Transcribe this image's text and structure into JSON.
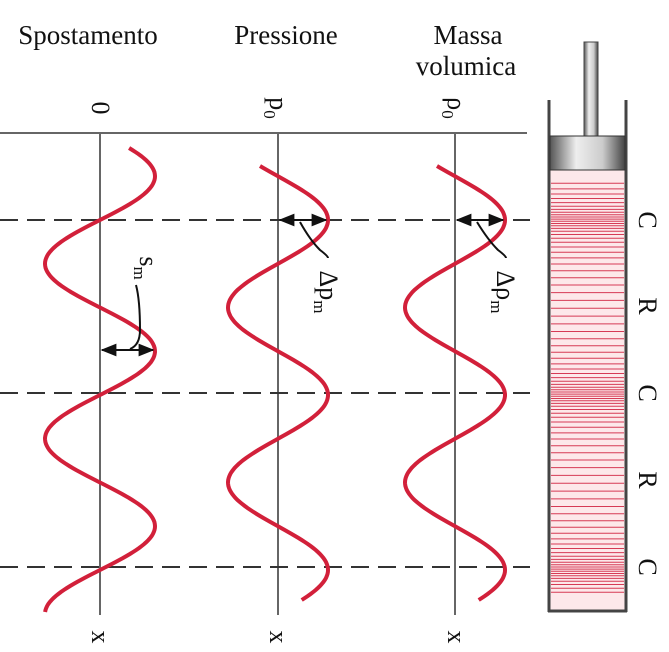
{
  "columns": [
    {
      "title_lines": [
        "Spostamento"
      ],
      "origin": {
        "symbol": "0"
      },
      "axis_label": "x",
      "amplitude": {
        "symbol": "s",
        "sub": "m"
      }
    },
    {
      "title_lines": [
        "Pressione"
      ],
      "origin": {
        "symbol": "p",
        "sub": "0"
      },
      "axis_label": "x",
      "amplitude": {
        "symbol": "Δp",
        "sub": "m"
      }
    },
    {
      "title_lines": [
        "Massa",
        "volumica"
      ],
      "origin": {
        "symbol": "ρ",
        "sub": "0"
      },
      "axis_label": "x",
      "amplitude": {
        "symbol": "Δρ",
        "sub": "m"
      }
    }
  ],
  "tube_labels": [
    "C",
    "R",
    "C",
    "R",
    "C"
  ]
}
